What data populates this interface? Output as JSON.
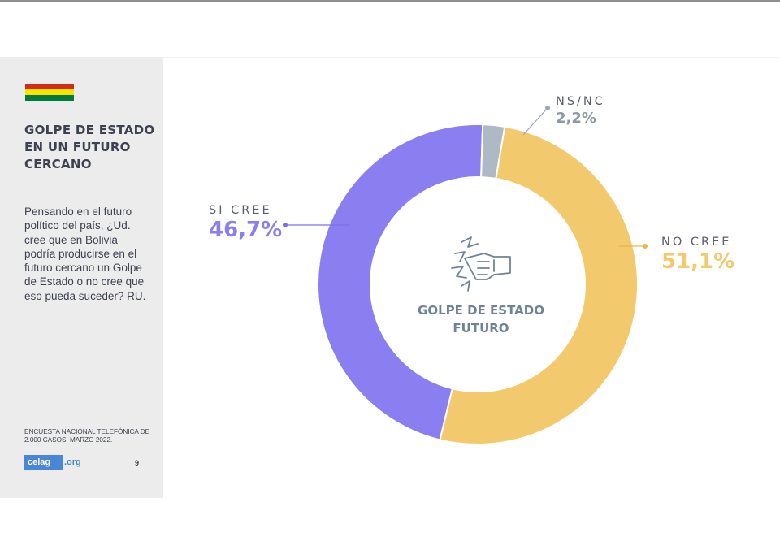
{
  "colors": {
    "si_cree": "#8a7ef0",
    "no_cree": "#f3c96d",
    "ns_nc": "#aeb9c5",
    "flag_red": "#d52b1e",
    "flag_yellow": "#f9e300",
    "flag_green": "#007a3d",
    "accent_text": "#3d4250",
    "brand_blue": "#4a86d6"
  },
  "sidebar": {
    "flag_icon": "bolivia-flag",
    "title": "GOLPE DE ESTADO EN UN FUTURO CERCANO",
    "question": "Pensando en el futuro político del país, ¿Ud. cree que en Bolivia podría producirse en el futuro cercano un Golpe de Estado o no cree que eso pueda suceder? RU.",
    "source": "ENCUESTA NACIONAL TELEFÓNICA DE 2.000 CASOS. MARZO 2022.",
    "logo": {
      "brand": "celag",
      "ext": ".org"
    },
    "page_number": "9"
  },
  "center": {
    "icon": "fist-breaking-wall-icon",
    "line1": "GOLPE DE ESTADO",
    "line2": "FUTURO"
  },
  "chart_data": {
    "type": "pie",
    "variant": "donut",
    "series": [
      {
        "name": "NO CREE",
        "value": 51.1,
        "label": "51,1%",
        "color": "#f3c96d"
      },
      {
        "name": "SI CREE",
        "value": 46.7,
        "label": "46,7%",
        "color": "#8a7ef0"
      },
      {
        "name": "NS/NC",
        "value": 2.2,
        "label": "2,2%",
        "color": "#aeb9c5"
      }
    ]
  }
}
